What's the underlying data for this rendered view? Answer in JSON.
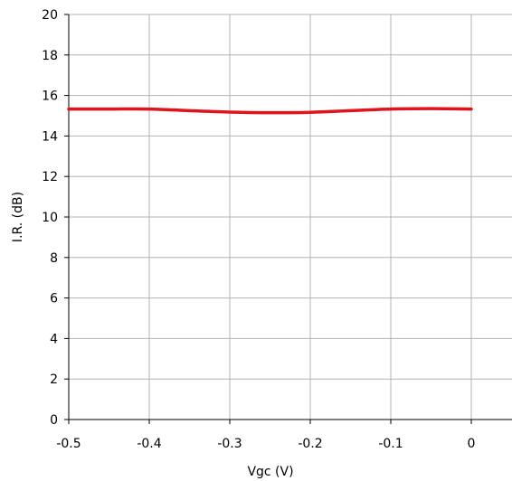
{
  "chart_data": {
    "type": "line",
    "title": "",
    "xlabel": "Vgc (V)",
    "ylabel": "I.R.  (dB)",
    "xlim": [
      -0.5,
      0
    ],
    "ylim": [
      0,
      20
    ],
    "x_ticks": [
      -0.5,
      -0.4,
      -0.3,
      -0.2,
      -0.1,
      0
    ],
    "x_tick_labels": [
      "-0.5",
      "-0.4",
      "-0.3",
      "-0.2",
      "-0.1",
      "0"
    ],
    "y_ticks": [
      0,
      2,
      4,
      6,
      8,
      10,
      12,
      14,
      16,
      18,
      20
    ],
    "y_tick_labels": [
      "0",
      "2",
      "4",
      "6",
      "8",
      "10",
      "12",
      "14",
      "16",
      "18",
      "20"
    ],
    "grid": true,
    "legend": "none",
    "series": [
      {
        "color": "#e0141b",
        "x": [
          -0.5,
          -0.45,
          -0.4,
          -0.35,
          -0.3,
          -0.25,
          -0.2,
          -0.15,
          -0.1,
          -0.05,
          0
        ],
        "y": [
          15.33,
          15.33,
          15.33,
          15.25,
          15.18,
          15.15,
          15.17,
          15.25,
          15.33,
          15.35,
          15.33
        ]
      }
    ]
  }
}
